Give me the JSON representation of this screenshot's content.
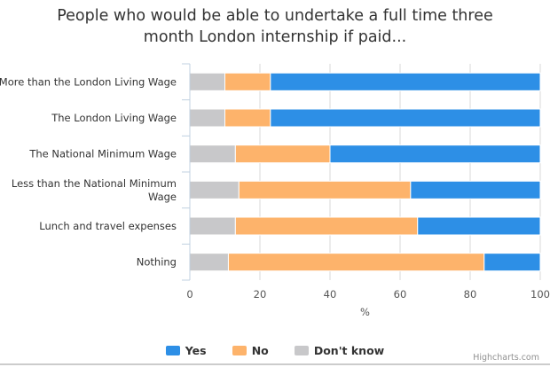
{
  "chart_data": {
    "type": "bar",
    "orientation": "horizontal",
    "stacked": true,
    "title_lines": [
      "People who would be able to undertake a full time three",
      "month London internship if paid..."
    ],
    "xlabel": "%",
    "xlim": [
      0,
      100
    ],
    "ticks": [
      "0",
      "20",
      "40",
      "60",
      "80",
      "100"
    ],
    "categories": [
      [
        "More than the London Living Wage"
      ],
      [
        "The London Living Wage"
      ],
      [
        "The National Minimum Wage"
      ],
      [
        "Less than the National Minimum",
        "Wage"
      ],
      [
        "Lunch and travel expenses"
      ],
      [
        "Nothing"
      ]
    ],
    "series": [
      {
        "name": "Don't know",
        "color": "#c8c8ca",
        "values": [
          10,
          10,
          13,
          14,
          13,
          11
        ]
      },
      {
        "name": "No",
        "color": "#fdb36b",
        "values": [
          13,
          13,
          27,
          49,
          52,
          73
        ]
      },
      {
        "name": "Yes",
        "color": "#2d8fe6",
        "values": [
          77,
          77,
          60,
          37,
          35,
          16
        ]
      }
    ],
    "legend": {
      "position": "bottom-center",
      "items": [
        {
          "name": "Yes",
          "color": "#2d8fe6"
        },
        {
          "name": "No",
          "color": "#fdb36b"
        },
        {
          "name": "Don't know",
          "color": "#c8c8ca"
        }
      ]
    },
    "credits": "Highcharts.com"
  }
}
